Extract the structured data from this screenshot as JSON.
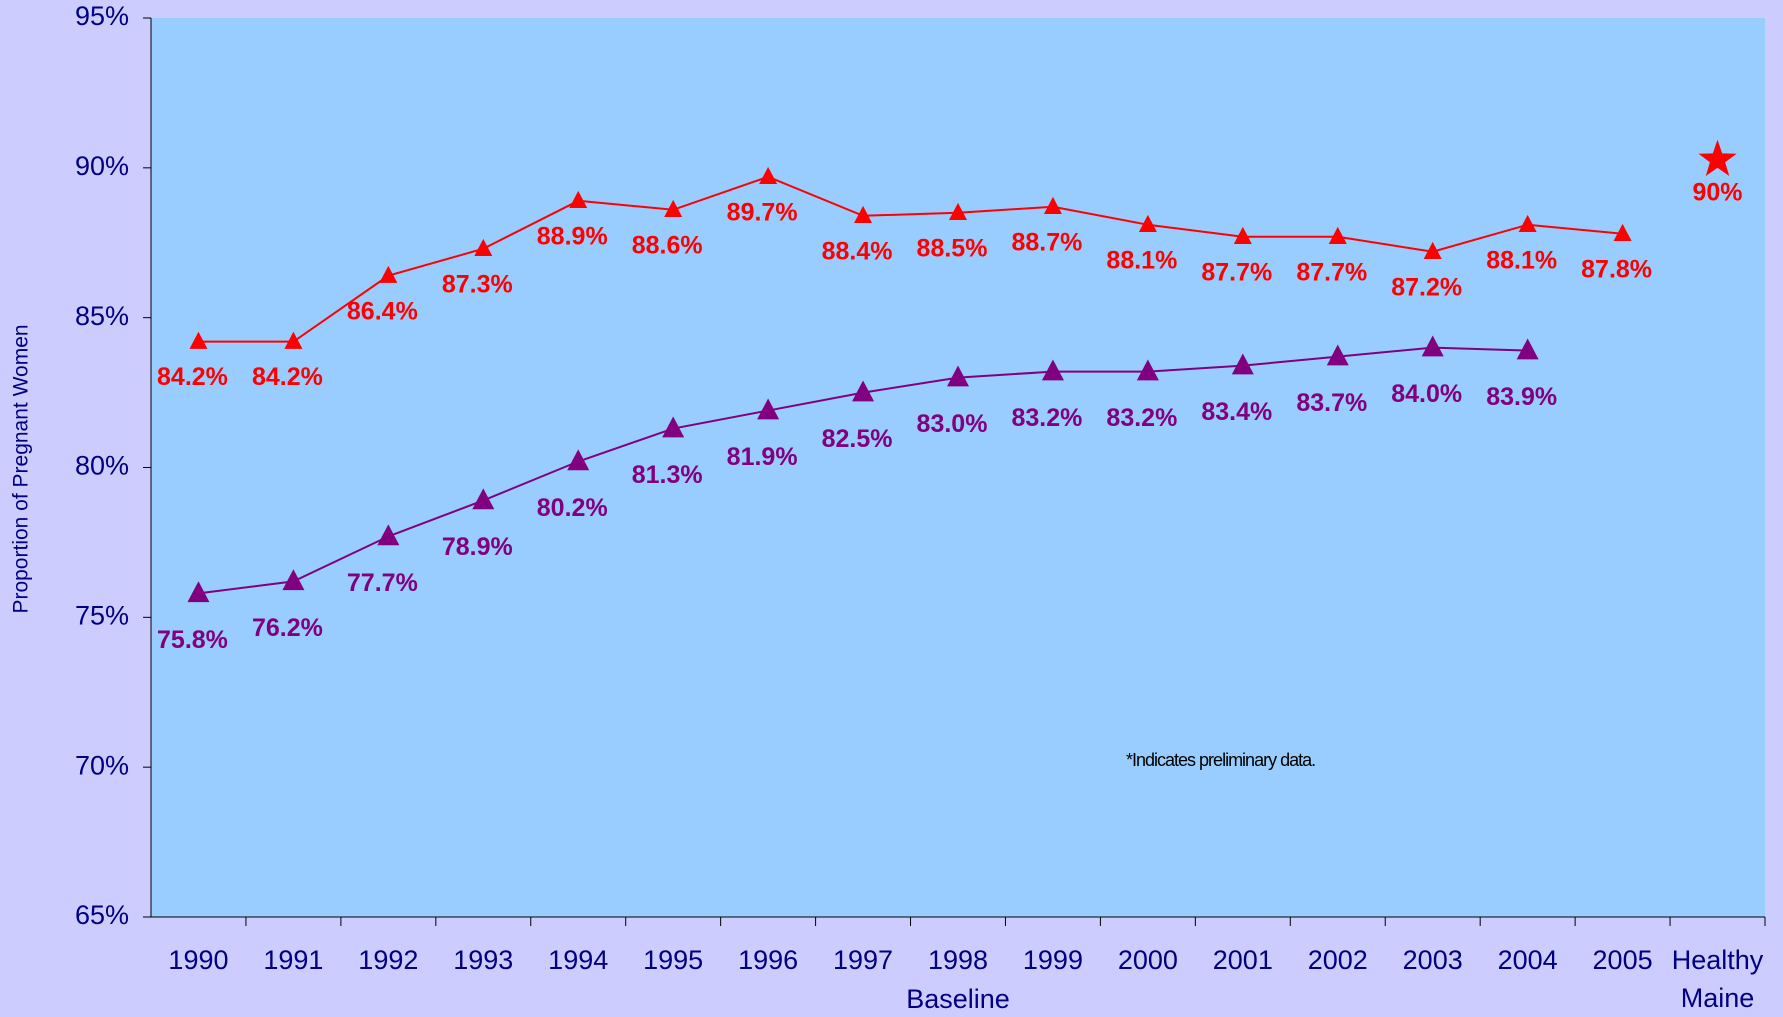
{
  "chart_data": {
    "type": "line",
    "y_label": "Proportion of Pregnant Women",
    "annotations": [
      "*Indicates preliminary data.",
      "Baseline"
    ],
    "categories": [
      "1990",
      "1991",
      "1992",
      "1993",
      "1994",
      "1995",
      "1996",
      "1997",
      "1998",
      "1999",
      "2000",
      "2001",
      "2002",
      "2003",
      "2004",
      "2005",
      "Healthy Maine"
    ],
    "ylim": [
      65,
      95
    ],
    "yticks": [
      {
        "value": 65,
        "label": "65%"
      },
      {
        "value": 70,
        "label": "70%"
      },
      {
        "value": 75,
        "label": "75%"
      },
      {
        "value": 80,
        "label": "80%"
      },
      {
        "value": 85,
        "label": "85%"
      },
      {
        "value": 90,
        "label": "90%"
      },
      {
        "value": 95,
        "label": "95%"
      }
    ],
    "series": [
      {
        "color": "#ff0000",
        "marker": "triangle",
        "values": [
          84.2,
          84.2,
          86.4,
          87.3,
          88.9,
          88.6,
          89.7,
          88.4,
          88.5,
          88.7,
          88.1,
          87.7,
          87.7,
          87.2,
          88.1,
          87.8,
          null
        ],
        "value_labels": [
          "84.2%",
          "84.2%",
          "86.4%",
          "87.3%",
          "88.9%",
          "88.6%",
          "89.7%",
          "88.4%",
          "88.5%",
          "88.7%",
          "88.1%",
          "87.7%",
          "87.7%",
          "87.2%",
          "88.1%",
          "87.8%",
          null
        ]
      },
      {
        "color": "#800080",
        "marker": "triangle",
        "values": [
          75.8,
          76.2,
          77.7,
          78.9,
          80.2,
          81.3,
          81.9,
          82.5,
          83.0,
          83.2,
          83.2,
          83.4,
          83.7,
          84.0,
          83.9,
          null,
          null
        ],
        "value_labels": [
          "75.8%",
          "76.2%",
          "77.7%",
          "78.9%",
          "80.2%",
          "81.3%",
          "81.9%",
          "82.5%",
          "83.0%",
          "83.2%",
          "83.2%",
          "83.4%",
          "83.7%",
          "84.0%",
          "83.9%",
          null,
          null
        ]
      },
      {
        "color": "#ff0000",
        "marker": "star",
        "values": [
          null,
          null,
          null,
          null,
          null,
          null,
          null,
          null,
          null,
          null,
          null,
          null,
          null,
          null,
          null,
          null,
          90
        ],
        "value_labels": [
          null,
          null,
          null,
          null,
          null,
          null,
          null,
          null,
          null,
          null,
          null,
          null,
          null,
          null,
          null,
          null,
          "90%"
        ]
      }
    ]
  }
}
